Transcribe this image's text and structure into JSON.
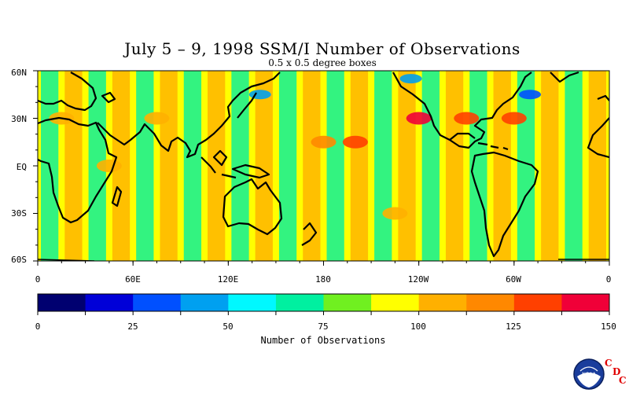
{
  "title": "July 5 – 9, 1998 SSM/I Number of Observations",
  "subtitle": "0.5 x 0.5 degree boxes",
  "lat_labels": [
    "60N",
    "30N",
    "EQ",
    "30S",
    "60S"
  ],
  "lon_labels": [
    "0",
    "60E",
    "120E",
    "180",
    "120W",
    "60W",
    "0"
  ],
  "colorbar": {
    "label": "Number of Observations",
    "min": 0,
    "max": 150,
    "tick_labels": [
      "0",
      "25",
      "50",
      "75",
      "100",
      "125",
      "150"
    ],
    "colors": [
      "#000070",
      "#0000d8",
      "#0050ff",
      "#00a0f0",
      "#00f8ff",
      "#00f0a0",
      "#70f020",
      "#ffff00",
      "#ffb000",
      "#ff8800",
      "#ff4000",
      "#f00038"
    ]
  },
  "logo": {
    "agency": "NOAA",
    "letters": [
      "C",
      "D",
      "C"
    ]
  },
  "chart_data": {
    "type": "heatmap",
    "title": "July 5 – 9, 1998 SSM/I Number of Observations",
    "subtitle": "0.5 x 0.5 degree boxes",
    "xlabel": "",
    "ylabel": "",
    "x_range": [
      0,
      360
    ],
    "y_range": [
      -60,
      60
    ],
    "value_range": [
      0,
      150
    ],
    "colorbar_label": "Number of Observations",
    "hotspots": [
      {
        "lon": 240,
        "lat": 30,
        "value": 140
      },
      {
        "lon": 270,
        "lat": 30,
        "value": 135
      },
      {
        "lon": 200,
        "lat": 15,
        "value": 135
      },
      {
        "lon": 300,
        "lat": 30,
        "value": 125
      },
      {
        "lon": 180,
        "lat": 15,
        "value": 115
      },
      {
        "lon": 75,
        "lat": 30,
        "value": 110
      },
      {
        "lon": 15,
        "lat": 30,
        "value": 110
      },
      {
        "lon": 45,
        "lat": 0,
        "value": 110
      },
      {
        "lon": 225,
        "lat": -30,
        "value": 112
      }
    ],
    "low_areas": [
      {
        "lon": 140,
        "lat": 45,
        "value": 40
      },
      {
        "lon": 310,
        "lat": 45,
        "value": 30
      },
      {
        "lon": 235,
        "lat": 55,
        "value": 45
      }
    ]
  }
}
